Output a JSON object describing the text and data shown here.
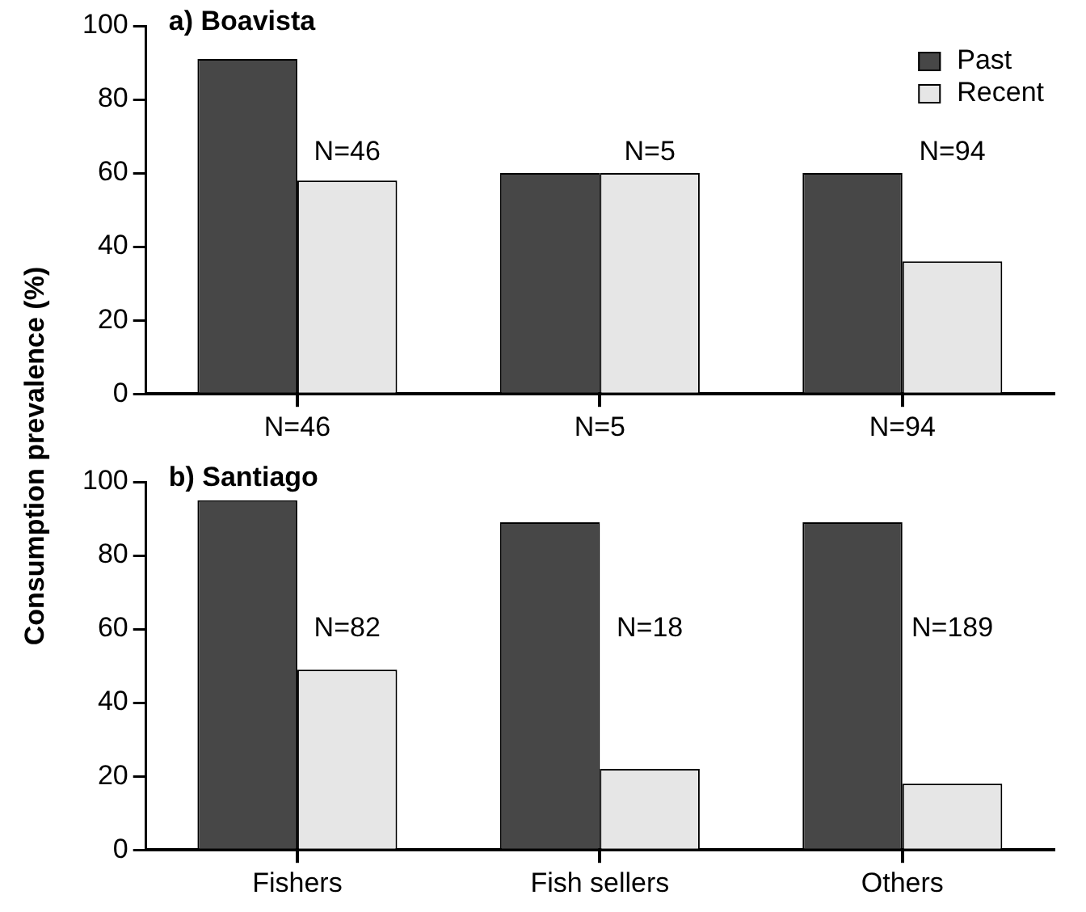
{
  "chart_data": [
    {
      "type": "bar",
      "title": "a) Boavista",
      "ylabel": "Consumption prevalence (%)",
      "categories": [
        "N=46",
        "N=5",
        "N=94"
      ],
      "series": [
        {
          "name": "Past",
          "color": "#474747",
          "values": [
            91,
            60,
            60
          ]
        },
        {
          "name": "Recent",
          "color": "#e6e6e6",
          "values": [
            58,
            60,
            36
          ]
        }
      ],
      "ylim": [
        0,
        100
      ],
      "yticks": [
        0,
        20,
        40,
        60,
        80,
        100
      ],
      "legend": "top right",
      "annotations": [
        "N=46",
        "N=5",
        "N=94"
      ]
    },
    {
      "type": "bar",
      "title": "b) Santiago",
      "categories": [
        "Fishers",
        "Fish sellers",
        "Others"
      ],
      "series": [
        {
          "color": "#474747",
          "values": [
            95,
            89,
            89
          ]
        },
        {
          "color": "#e6e6e6",
          "values": [
            49,
            22,
            18
          ]
        }
      ],
      "ylim": [
        0,
        100
      ],
      "yticks": [
        0,
        20,
        40,
        60,
        80,
        100
      ],
      "annotations": [
        "N=82",
        "N=18",
        "N=189"
      ]
    }
  ]
}
